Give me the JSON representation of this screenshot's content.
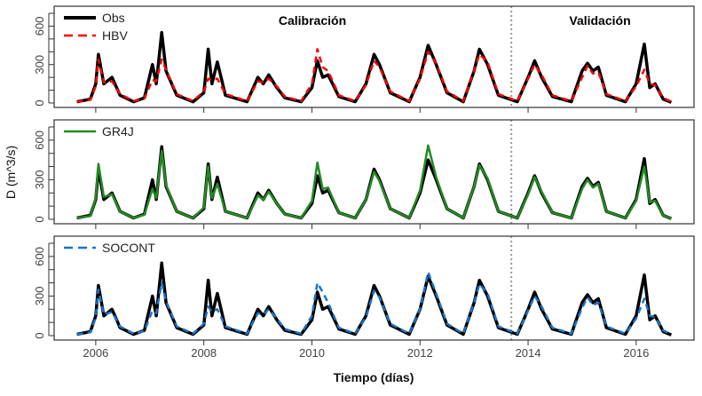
{
  "chart_data": [
    {
      "type": "line",
      "ylabel": "D (m^3/s)",
      "xlabel": "Tiempo (días)",
      "xlim": [
        2005.23,
        2017.07
      ],
      "ylim": [
        0,
        700
      ],
      "xticks": [
        "2006",
        "2008",
        "2010",
        "2012",
        "2014",
        "2016"
      ],
      "yticks": [
        0,
        100,
        200,
        300,
        400,
        500,
        600,
        700
      ],
      "ytick_labels": [
        "0",
        "300",
        "600"
      ],
      "split_line_x": 2013.69,
      "period_labels": {
        "calibration": "Calibración",
        "validation": "Validación"
      },
      "x": [
        2005.65,
        2005.9,
        2006.0,
        2006.05,
        2006.15,
        2006.3,
        2006.45,
        2006.7,
        2006.9,
        2007.05,
        2007.12,
        2007.22,
        2007.3,
        2007.5,
        2007.8,
        2008.0,
        2008.08,
        2008.15,
        2008.25,
        2008.4,
        2008.8,
        2009.0,
        2009.1,
        2009.2,
        2009.35,
        2009.5,
        2009.8,
        2010.0,
        2010.1,
        2010.2,
        2010.3,
        2010.5,
        2010.8,
        2011.0,
        2011.15,
        2011.25,
        2011.45,
        2011.8,
        2012.0,
        2012.15,
        2012.3,
        2012.5,
        2012.8,
        2013.0,
        2013.1,
        2013.25,
        2013.45,
        2013.8,
        2014.0,
        2014.12,
        2014.25,
        2014.45,
        2014.8,
        2015.0,
        2015.1,
        2015.2,
        2015.3,
        2015.45,
        2015.8,
        2016.0,
        2016.15,
        2016.25,
        2016.35,
        2016.5,
        2016.65
      ],
      "obs": {
        "name": "Obs",
        "color": "#000000",
        "values": [
          10,
          30,
          150,
          380,
          150,
          200,
          60,
          10,
          40,
          300,
          150,
          550,
          250,
          60,
          10,
          80,
          420,
          150,
          320,
          60,
          10,
          200,
          150,
          220,
          120,
          40,
          10,
          120,
          330,
          200,
          220,
          50,
          10,
          150,
          380,
          300,
          80,
          10,
          200,
          450,
          300,
          80,
          10,
          250,
          420,
          300,
          60,
          10,
          200,
          330,
          200,
          50,
          10,
          250,
          310,
          250,
          280,
          60,
          10,
          150,
          460,
          120,
          150,
          30,
          5
        ]
      },
      "panels": [
        {
          "name": "HBV",
          "color": "#ff0000",
          "style": "dashed",
          "values": [
            10,
            25,
            130,
            340,
            160,
            170,
            70,
            15,
            35,
            180,
            170,
            340,
            260,
            70,
            15,
            90,
            190,
            180,
            190,
            70,
            15,
            170,
            160,
            190,
            130,
            50,
            15,
            150,
            420,
            280,
            250,
            60,
            15,
            140,
            330,
            280,
            90,
            15,
            190,
            400,
            310,
            90,
            15,
            250,
            380,
            320,
            70,
            15,
            190,
            300,
            220,
            60,
            15,
            200,
            290,
            230,
            240,
            70,
            15,
            130,
            260,
            150,
            140,
            40,
            10
          ]
        },
        {
          "name": "GR4J",
          "color": "#228B22",
          "style": "solid",
          "values": [
            10,
            25,
            160,
            420,
            170,
            190,
            60,
            10,
            35,
            230,
            160,
            520,
            260,
            60,
            10,
            90,
            400,
            160,
            270,
            60,
            10,
            180,
            150,
            210,
            120,
            40,
            10,
            140,
            430,
            230,
            240,
            50,
            10,
            150,
            360,
            290,
            80,
            10,
            220,
            560,
            320,
            80,
            10,
            250,
            410,
            310,
            60,
            10,
            190,
            320,
            210,
            50,
            10,
            230,
            300,
            240,
            270,
            60,
            10,
            140,
            400,
            130,
            140,
            30,
            5
          ]
        },
        {
          "name": "SOCONT",
          "color": "#1874CD",
          "style": "dashed",
          "values": [
            10,
            25,
            140,
            350,
            160,
            180,
            70,
            15,
            35,
            190,
            170,
            400,
            260,
            70,
            15,
            90,
            220,
            180,
            200,
            70,
            15,
            170,
            160,
            200,
            130,
            50,
            15,
            150,
            400,
            330,
            250,
            60,
            15,
            140,
            340,
            290,
            90,
            15,
            200,
            480,
            320,
            90,
            15,
            250,
            390,
            320,
            70,
            15,
            190,
            300,
            220,
            60,
            15,
            210,
            290,
            230,
            250,
            70,
            15,
            130,
            280,
            150,
            140,
            40,
            10
          ]
        }
      ]
    }
  ]
}
